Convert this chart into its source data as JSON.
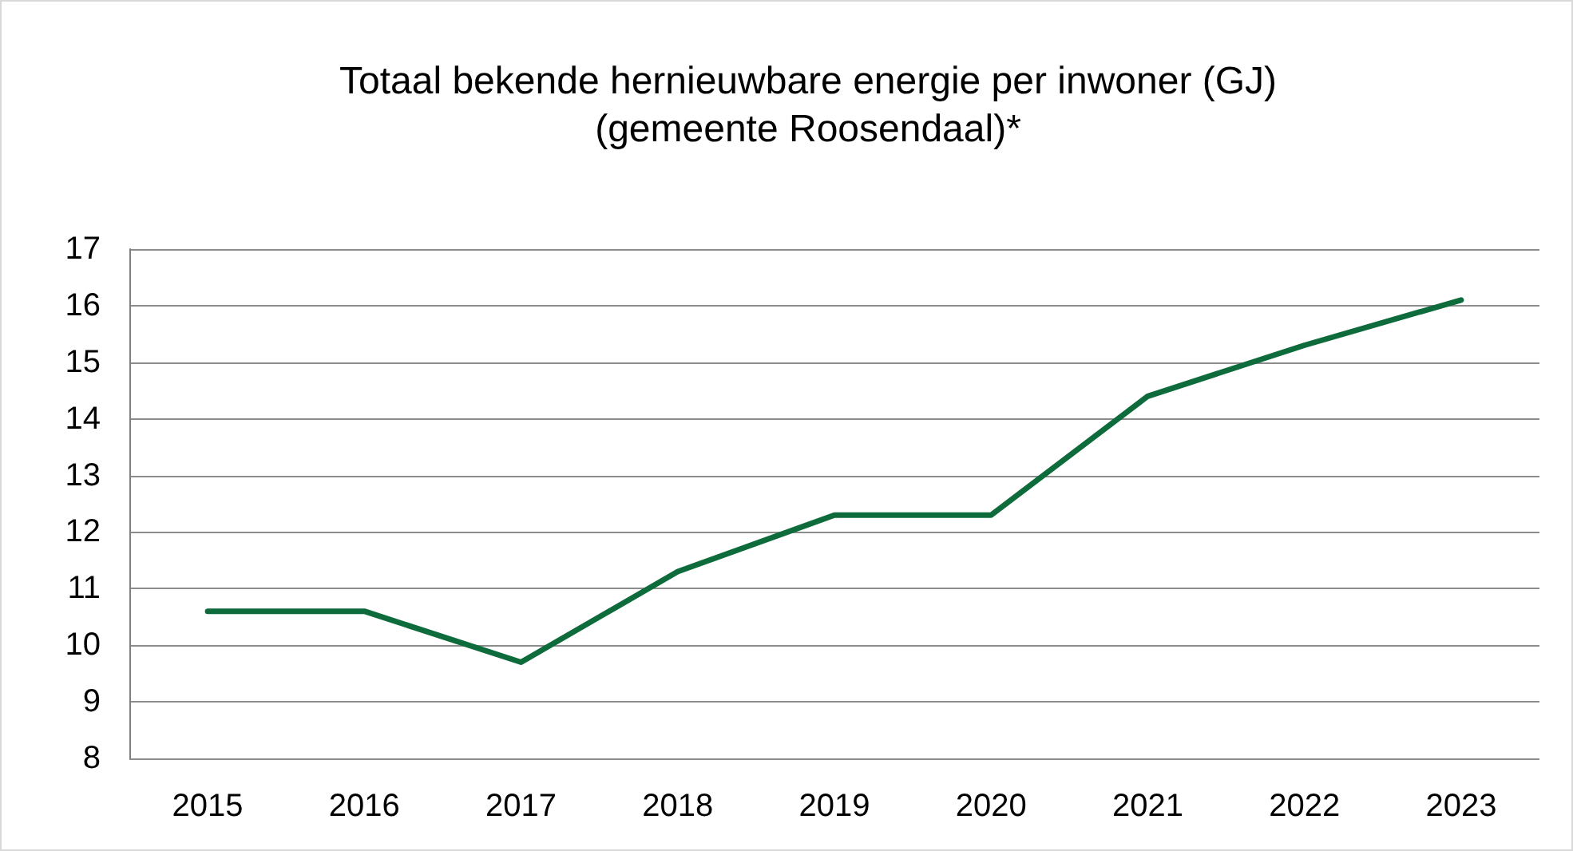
{
  "chart_data": {
    "type": "line",
    "title": "Totaal bekende hernieuwbare energie per inwoner (GJ)\n(gemeente Roosendaal)*",
    "categories": [
      "2015",
      "2016",
      "2017",
      "2018",
      "2019",
      "2020",
      "2021",
      "2022",
      "2023"
    ],
    "series": [
      {
        "color": "#0e6b3b",
        "values": [
          10.6,
          10.6,
          9.7,
          11.3,
          12.3,
          12.3,
          14.4,
          15.3,
          16.1
        ]
      }
    ],
    "ylim": [
      8,
      17
    ],
    "yticks": [
      8,
      9,
      10,
      11,
      12,
      13,
      14,
      15,
      16,
      17
    ],
    "grid": "y",
    "marker": "none",
    "line_style": "solid"
  }
}
